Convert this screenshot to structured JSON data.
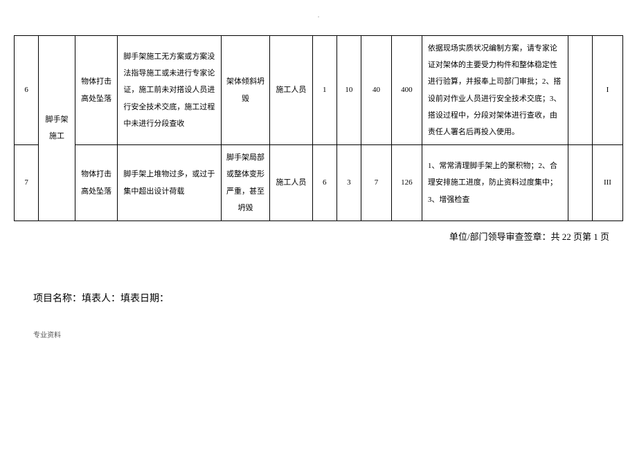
{
  "page_top_marker": "·",
  "rows": [
    {
      "num": "6",
      "name": "脚手架施工",
      "type": "物体打击高处坠落",
      "cause": "脚手架施工无方案或方案没法指导施工或未进行专家论证，施工前未对搭设人员进行安全技术交底，施工过程中未进行分段查收",
      "result": "架体倾斜坍毁",
      "person": "施工人员",
      "v1": "1",
      "v2": "10",
      "v3": "40",
      "v4": "400",
      "measure": "依据现场实质状况编制方案，请专家论证对架体的主要受力构件和整体稳定性进行验算，并报奉上司部门审批；2、搭设前对作业人员进行安全技术交底；3、搭设过程中，分段对架体进行查收，由责任人署名后再投入使用。",
      "level": "I"
    },
    {
      "num": "7",
      "name": "",
      "type": "物体打击高处坠落",
      "cause": "脚手架上堆物过多，或过于集中超出设计荷载",
      "result": "脚手架局部或整体变形严重，甚至坍毁",
      "person": "施工人员",
      "v1": "6",
      "v2": "3",
      "v3": "7",
      "v4": "126",
      "measure": "1、常常清理脚手架上的聚积物；2、合理安排施工进度，防止资料过度集中；3、增强检查",
      "level": "III"
    }
  ],
  "signature": {
    "label": "单位/部门领导审查签章：",
    "pages": "共 22 页第 1 页"
  },
  "project_line": "项目名称：填表人：填表日期：",
  "footer": "专业资料",
  "colors": {
    "border": "#000000",
    "background": "#ffffff",
    "text": "#000000"
  }
}
